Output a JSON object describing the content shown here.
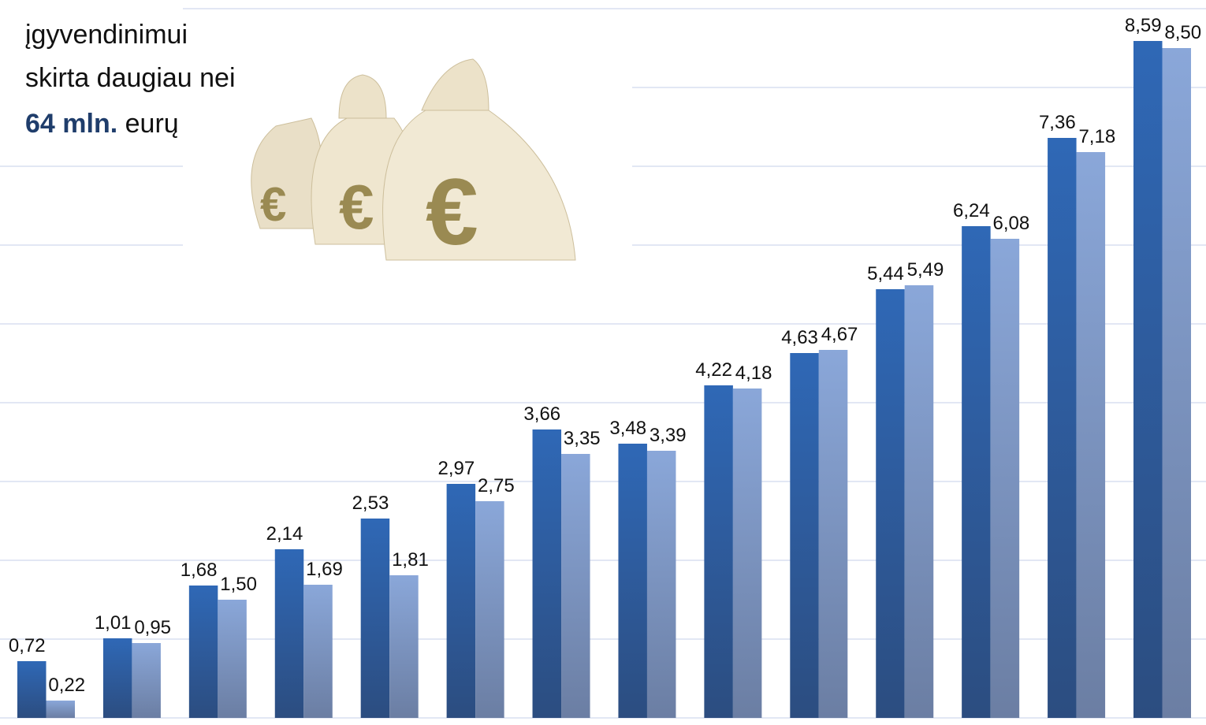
{
  "chart_data": {
    "type": "bar",
    "annotation": {
      "lines": [
        "įgyvendinimui",
        "skirta daugiau nei"
      ],
      "emphasis": "64 mln.",
      "rest": "eurų"
    },
    "series": [
      {
        "color": "#2f65b0",
        "values": [
          0.72,
          1.01,
          1.68,
          2.14,
          2.53,
          2.97,
          3.66,
          3.48,
          4.22,
          4.63,
          5.44,
          6.24,
          7.36,
          8.59
        ],
        "value_labels": [
          "0,72",
          "1,01",
          "1,68",
          "2,14",
          "2,53",
          "2,97",
          "3,66",
          "3,48",
          "4,22",
          "4,63",
          "5,44",
          "6,24",
          "7,36",
          "8,59"
        ]
      },
      {
        "color": "#89a5d6",
        "values": [
          0.22,
          0.95,
          1.5,
          1.69,
          1.81,
          2.75,
          3.35,
          3.39,
          4.18,
          4.67,
          5.49,
          6.08,
          7.18,
          8.5
        ],
        "value_labels": [
          "0,22",
          "0,95",
          "1,50",
          "1,69",
          "1,81",
          "2,75",
          "3,35",
          "3,39",
          "4,18",
          "4,67",
          "5,49",
          "6,08",
          "7,18",
          "8,50"
        ]
      }
    ],
    "ylim": [
      0,
      9
    ],
    "yticks": [
      0,
      1,
      2,
      3,
      4,
      5,
      6,
      7,
      8,
      9
    ],
    "grid": true
  }
}
